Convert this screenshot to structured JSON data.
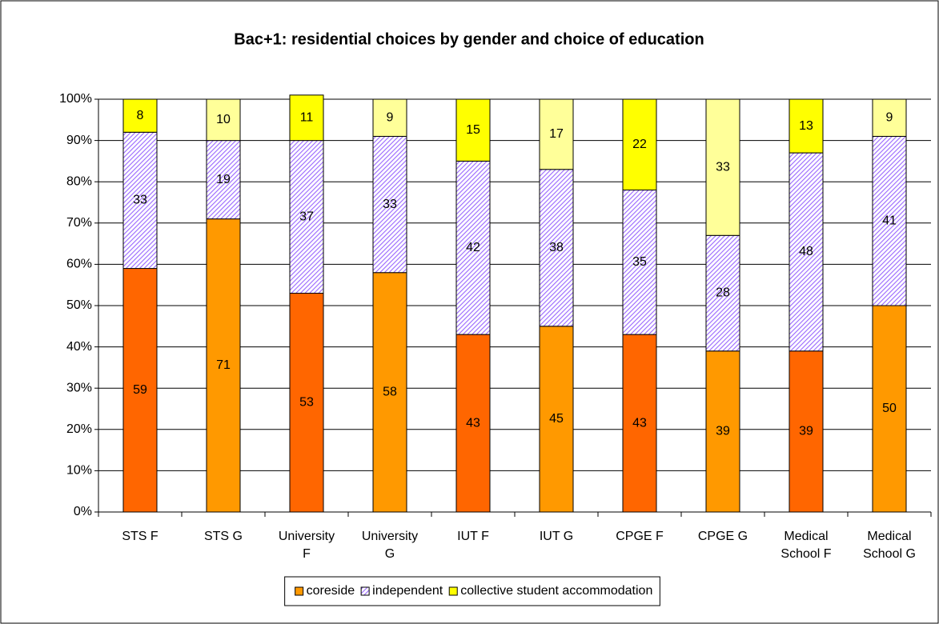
{
  "chart_data": {
    "type": "stacked_bar",
    "title": "Bac+1: residential choices by gender and choice of education",
    "categories": [
      "STS F",
      "STS G",
      "University F",
      "University G",
      "IUT F",
      "IUT G",
      "CPGE F",
      "CPGE G",
      "Medical School F",
      "Medical School G"
    ],
    "series": [
      {
        "name": "coreside",
        "color": "#FF9900",
        "colors": [
          "#FF6600",
          "#FF9900",
          "#FF6600",
          "#FF9900",
          "#FF6600",
          "#FF9900",
          "#FF6600",
          "#FF9900",
          "#FF6600",
          "#FF9900"
        ],
        "values": [
          59,
          71,
          53,
          58,
          43,
          45,
          43,
          39,
          39,
          50
        ]
      },
      {
        "name": "independent",
        "color": "#9966FF",
        "hatch": true,
        "values": [
          33,
          19,
          37,
          33,
          42,
          38,
          35,
          28,
          48,
          41
        ]
      },
      {
        "name": "collective student accommodation",
        "color": "#FFFF00",
        "colors": [
          "#FFFF00",
          "#FFFF99",
          "#FFFF00",
          "#FFFF99",
          "#FFFF00",
          "#FFFF99",
          "#FFFF00",
          "#FFFF99",
          "#FFFF00",
          "#FFFF99"
        ],
        "values": [
          8,
          10,
          11,
          9,
          15,
          17,
          22,
          33,
          13,
          9
        ]
      }
    ],
    "ylim": [
      0,
      100
    ],
    "yticks": [
      {
        "value": 0,
        "label": "0%"
      },
      {
        "value": 10,
        "label": "10%"
      },
      {
        "value": 20,
        "label": "20%"
      },
      {
        "value": 30,
        "label": "30%"
      },
      {
        "value": 40,
        "label": "40%"
      },
      {
        "value": 50,
        "label": "50%"
      },
      {
        "value": 60,
        "label": "60%"
      },
      {
        "value": 70,
        "label": "70%"
      },
      {
        "value": 80,
        "label": "80%"
      },
      {
        "value": 90,
        "label": "90%"
      },
      {
        "value": 100,
        "label": "100%"
      }
    ],
    "grid": true,
    "legend": "bottom"
  }
}
